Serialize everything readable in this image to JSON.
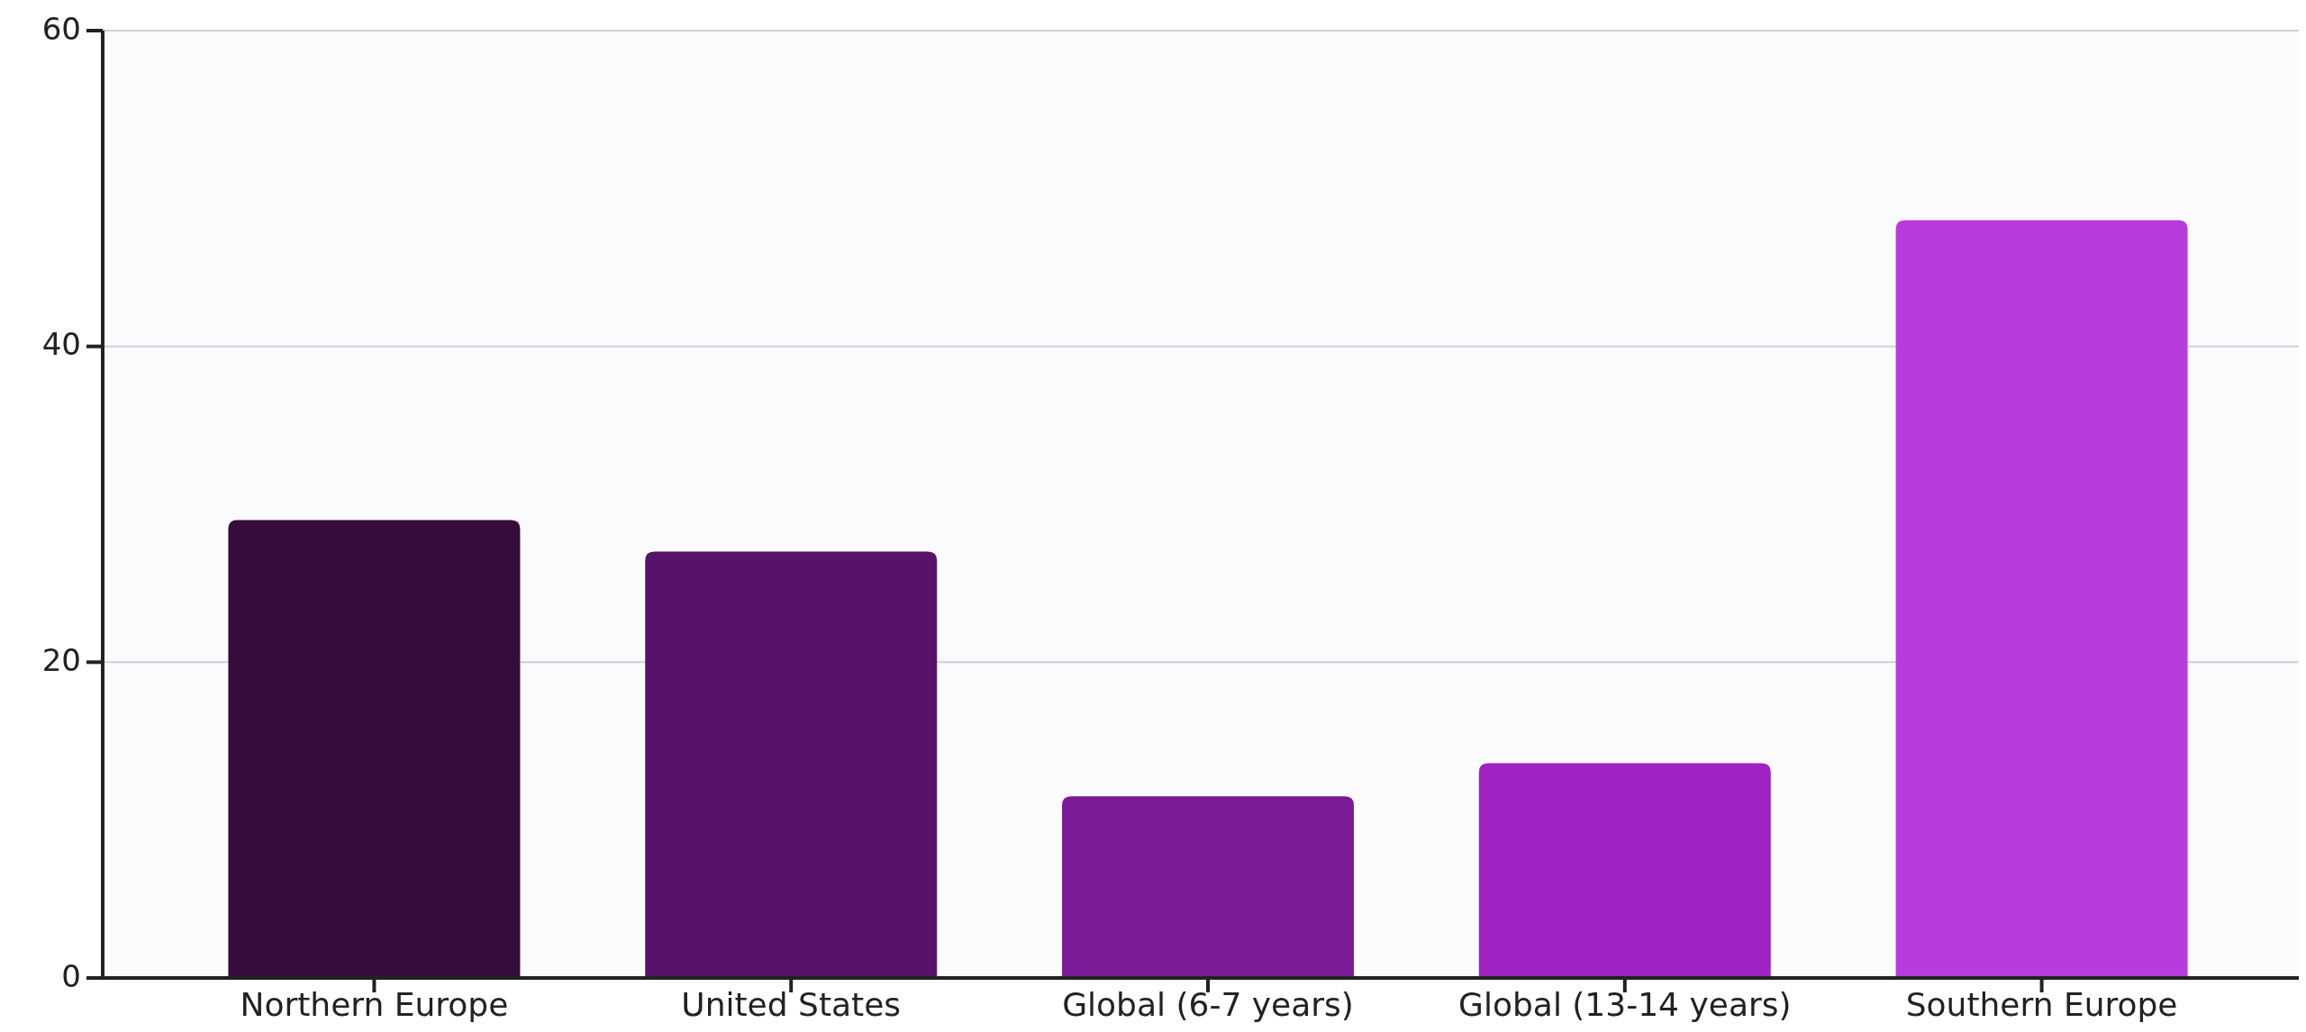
{
  "chart_data": {
    "type": "bar",
    "categories": [
      "Northern Europe",
      "United States",
      "Global (6-7 years)",
      "Global (13-14 years)",
      "Southern Europe"
    ],
    "values": [
      29,
      27,
      11.5,
      13.6,
      48
    ],
    "colors": [
      "#350c3c",
      "#571369",
      "#7b1b95",
      "#9f22c2",
      "#b83cdc"
    ],
    "ylim": [
      0,
      60
    ],
    "yticks": [
      0,
      20,
      40,
      60
    ],
    "grid": "y"
  }
}
